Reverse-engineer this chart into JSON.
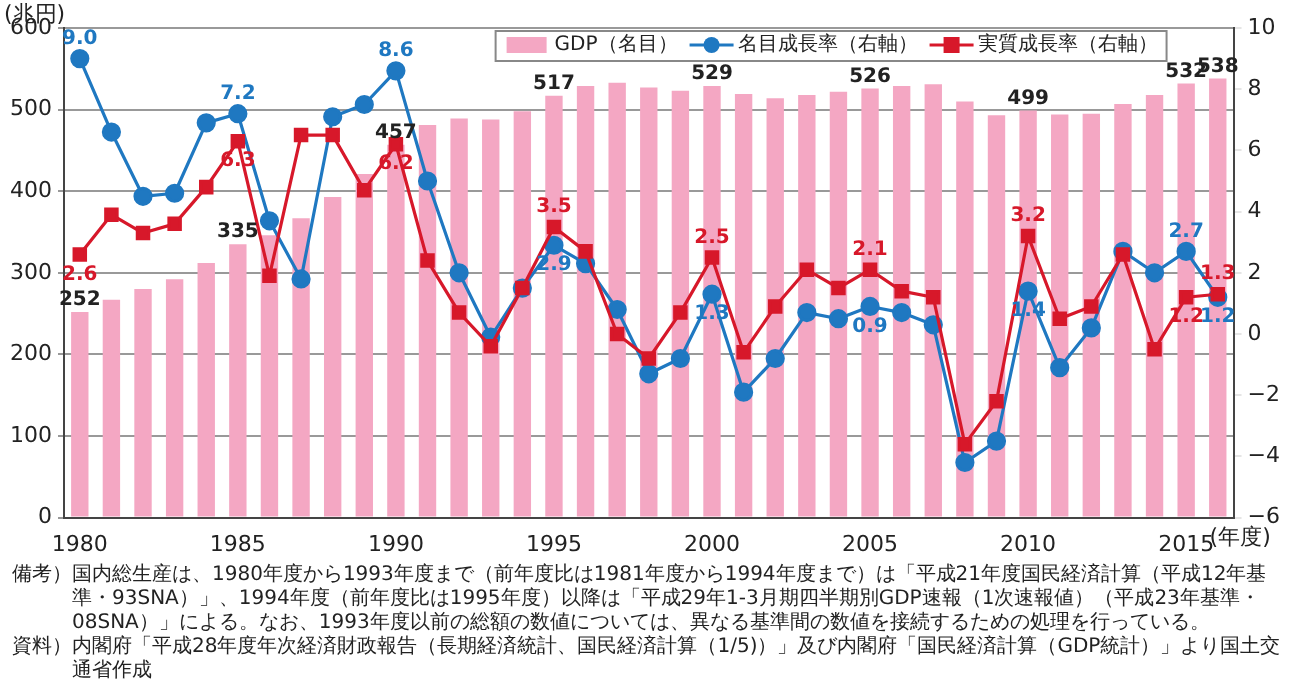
{
  "chart_data": {
    "type": "bar",
    "ylabel": "(兆円)",
    "xlabel": "(年度)",
    "categories": [
      "1980",
      null,
      null,
      null,
      null,
      "1985",
      null,
      null,
      null,
      null,
      "1990",
      null,
      null,
      null,
      null,
      "1995",
      null,
      null,
      null,
      null,
      "2000",
      null,
      null,
      null,
      null,
      "2005",
      null,
      null,
      null,
      null,
      "2010",
      null,
      null,
      null,
      null,
      "2015",
      null
    ],
    "series": [
      {
        "name": "GDP（名目）",
        "color": "#f4a7c3",
        "values": [
          252,
          267,
          280,
          292,
          312,
          335,
          346,
          367,
          393,
          421,
          457,
          481,
          489,
          488,
          498,
          517,
          529,
          533,
          527,
          523,
          529,
          519,
          514,
          518,
          522,
          526,
          529,
          531,
          510,
          493,
          499,
          494,
          495,
          507,
          518,
          532,
          538
        ],
        "value_labels": [
          "252",
          null,
          null,
          null,
          null,
          "335",
          null,
          null,
          null,
          null,
          "457",
          null,
          null,
          null,
          null,
          "517",
          null,
          null,
          null,
          null,
          "529",
          null,
          null,
          null,
          null,
          "526",
          null,
          null,
          null,
          null,
          "499",
          null,
          null,
          null,
          null,
          "532",
          "538"
        ]
      },
      {
        "name": "名目成長率（右軸）",
        "type": "line",
        "axis": "y2",
        "marker": "circle",
        "color": "#1f78c1",
        "values": [
          9.0,
          6.6,
          4.5,
          4.6,
          6.9,
          7.2,
          3.7,
          1.8,
          7.1,
          7.5,
          8.6,
          5.0,
          2.0,
          -0.1,
          1.5,
          2.9,
          2.3,
          0.8,
          -1.3,
          -0.8,
          1.3,
          -1.9,
          -0.8,
          0.7,
          0.5,
          0.9,
          0.7,
          0.3,
          -4.2,
          -3.5,
          1.4,
          -1.1,
          0.2,
          2.7,
          2.0,
          2.7,
          1.2
        ],
        "value_labels": [
          "9.0",
          null,
          null,
          null,
          null,
          "7.2",
          null,
          null,
          null,
          null,
          "8.6",
          null,
          null,
          null,
          null,
          "2.9",
          null,
          null,
          null,
          null,
          "1.3",
          null,
          null,
          null,
          null,
          "0.9",
          null,
          null,
          null,
          null,
          "1.4",
          null,
          null,
          null,
          null,
          "2.7",
          "1.2"
        ]
      },
      {
        "name": "実質成長率（右軸）",
        "type": "line",
        "axis": "y2",
        "marker": "square",
        "color": "#d7182a",
        "values": [
          2.6,
          3.9,
          3.3,
          3.6,
          4.8,
          6.3,
          1.9,
          6.5,
          6.5,
          4.7,
          6.2,
          2.4,
          0.7,
          -0.4,
          1.5,
          3.5,
          2.7,
          0.0,
          -0.8,
          0.7,
          2.5,
          -0.6,
          0.9,
          2.1,
          1.5,
          2.1,
          1.4,
          1.2,
          -3.6,
          -2.2,
          3.2,
          0.5,
          0.9,
          2.6,
          -0.5,
          1.2,
          1.3
        ],
        "value_labels": [
          "2.6",
          null,
          null,
          null,
          null,
          "6.3",
          null,
          null,
          null,
          null,
          "6.2",
          null,
          null,
          null,
          null,
          "3.5",
          null,
          null,
          null,
          null,
          "2.5",
          null,
          null,
          null,
          null,
          "2.1",
          null,
          null,
          null,
          null,
          "3.2",
          null,
          null,
          null,
          null,
          "1.2",
          "1.3"
        ]
      }
    ],
    "ylim": [
      0,
      600
    ],
    "yticks": [
      0,
      100,
      200,
      300,
      400,
      500,
      600
    ],
    "y2lim": [
      -6,
      10
    ],
    "y2ticks": [
      {
        "value": -6,
        "label": "−6"
      },
      {
        "value": -4,
        "label": "−4"
      },
      {
        "value": -2,
        "label": "−2"
      },
      0,
      2,
      4,
      6,
      8,
      10
    ],
    "grid": "y",
    "legend": "top right",
    "annotations": [
      "備考）国内総生産は、1980年度から1993年度まで（前年度比は1981年度から1994年度まで）は「平成21年度国民経済計算（平成12年基準・93SNA）」、1994年度（前年度比は1995年度）以降は「平成29年1-3月期四半期別GDP速報（1次速報値）（平成23年基準・08SNA）」による。なお、1993年度以前の総額の数値については、異なる基準間の数値を接続するための処理を行っている。",
      "資料）内閣府「平成28年度年次経済財政報告（長期経済統計、国民経済計算（1/5)）」及び内閣府「国民経済計算（GDP統計）」より国土交通省作成"
    ]
  }
}
